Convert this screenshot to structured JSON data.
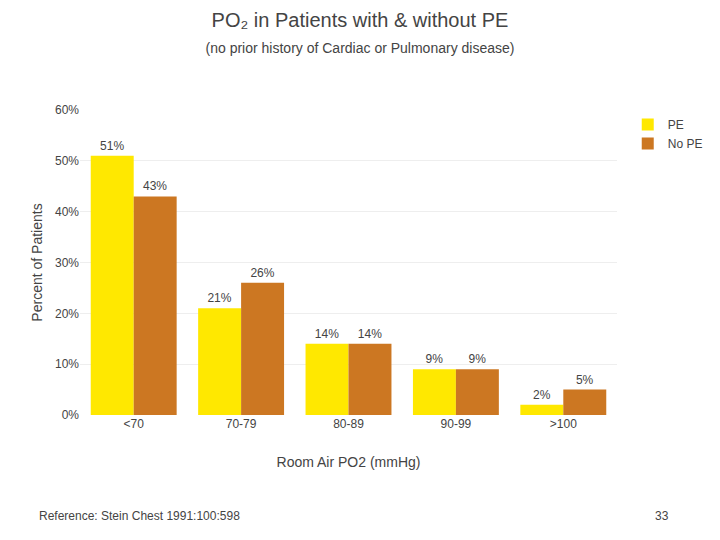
{
  "chart_data": {
    "type": "bar",
    "title": "PO₂ in Patients with & without PE",
    "subtitle": "(no prior history of Cardiac or Pulmonary disease)",
    "x_label": "Room Air PO2 (mmHg)",
    "y_label": "Percent of Patients",
    "categories": [
      "<70",
      "70-79",
      "80-89",
      "90-99",
      ">100"
    ],
    "series": [
      {
        "name": "PE",
        "color": "#FFE800",
        "values": [
          51,
          21,
          14,
          9,
          2
        ],
        "value_labels": [
          "51%",
          "21%",
          "14%",
          "9%",
          "2%"
        ]
      },
      {
        "name": "No PE",
        "color": "#CC7722",
        "values": [
          43,
          26,
          14,
          9,
          5
        ],
        "value_labels": [
          "43%",
          "26%",
          "14%",
          "9%",
          "5%"
        ]
      }
    ],
    "ylim": [
      0,
      60
    ],
    "yticks": [
      {
        "value": 0,
        "label": "0%"
      },
      {
        "value": 10,
        "label": "10%"
      },
      {
        "value": 20,
        "label": "20%"
      },
      {
        "value": 30,
        "label": "30%"
      },
      {
        "value": 40,
        "label": "40%"
      },
      {
        "value": 50,
        "label": "50%"
      },
      {
        "value": 60,
        "label": "60%"
      }
    ],
    "grid": true,
    "legend": "right",
    "data_labels": true,
    "annotations": [
      "Reference: Stein Chest 1991:100:598",
      "33"
    ]
  }
}
